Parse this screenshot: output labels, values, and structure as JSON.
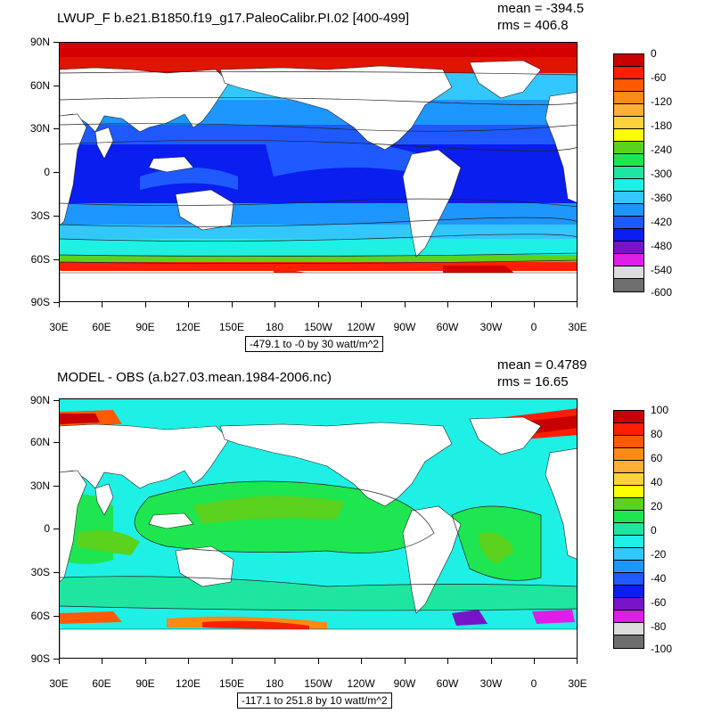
{
  "panels": [
    {
      "title": "LWUP_F b.e21.B1850.f19_g17.PaleoCalibr.PI.02 [400-499]",
      "mean_text": "mean = -394.5",
      "rms_text": "rms = 406.8",
      "lat_labels": [
        "90N",
        "60N",
        "30N",
        "0",
        "30S",
        "60S",
        "90S"
      ],
      "lon_labels": [
        "30E",
        "60E",
        "90E",
        "120E",
        "150E",
        "180",
        "150W",
        "120W",
        "90W",
        "60W",
        "30W",
        "0",
        "30E"
      ],
      "contour_info": "-479.1 to -0 by 30 watt/m^2",
      "colorbar": {
        "labels": [
          "0",
          "-60",
          "-120",
          "-180",
          "-240",
          "-300",
          "-360",
          "-420",
          "-480",
          "-540",
          "-600"
        ],
        "colors": [
          "#c80000",
          "#ff1e00",
          "#ff5a00",
          "#ff8a14",
          "#ffae36",
          "#ffd23c",
          "#ffff00",
          "#5ad21e",
          "#1ee650",
          "#1ee6a0",
          "#1ef0e6",
          "#32c8ff",
          "#1e96ff",
          "#1e5aff",
          "#0a1ef0",
          "#7814c8",
          "#dc1ee6",
          "#dcdcdc",
          "#6e6e6e"
        ]
      }
    },
    {
      "title": "MODEL - OBS (a.b27.03.mean.1984-2006.nc)",
      "mean_text": "mean = 0.4789",
      "rms_text": "rms = 16.65",
      "lat_labels": [
        "90N",
        "60N",
        "30N",
        "0",
        "30S",
        "60S",
        "90S"
      ],
      "lon_labels": [
        "30E",
        "60E",
        "90E",
        "120E",
        "150E",
        "180",
        "150W",
        "120W",
        "90W",
        "60W",
        "30W",
        "0",
        "30E"
      ],
      "contour_info": "-117.1 to 251.8 by 10 watt/m^2",
      "colorbar": {
        "labels": [
          "100",
          "80",
          "60",
          "40",
          "20",
          "0",
          "-20",
          "-40",
          "-60",
          "-80",
          "-100"
        ],
        "colors": [
          "#c80000",
          "#ff1e00",
          "#ff5a00",
          "#ff8a14",
          "#ffae36",
          "#ffd23c",
          "#ffff00",
          "#5ad21e",
          "#1ee650",
          "#1ee6a0",
          "#1ef0e6",
          "#32c8ff",
          "#1e96ff",
          "#1e5aff",
          "#0a1ef0",
          "#7814c8",
          "#dc1ee6",
          "#dcdcdc",
          "#6e6e6e"
        ]
      }
    }
  ]
}
